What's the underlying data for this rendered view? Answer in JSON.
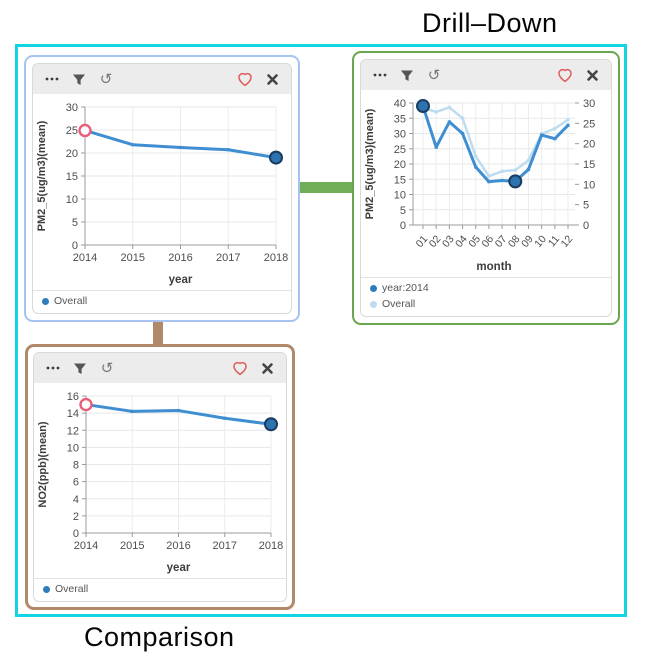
{
  "captions": {
    "drill_down": "Drill–Down",
    "comparison": "Comparison"
  },
  "colors": {
    "selection_frame_cyan": "#12d5e4",
    "focus_panel_border_blue": "#a6c3f2",
    "drilldown_link_green": "#6fae57",
    "comparison_link_brown": "#b0886a",
    "line_blue": "#3f8ed2",
    "line_light_blue": "#bedcf0",
    "marker_pink": "#e85d78",
    "marker_dark_fill": "#2d73af",
    "favorite_heart_red": "#e15b5b",
    "toolbar_background": "#ececec"
  },
  "toolbar": {
    "icons": [
      "more-options",
      "filter",
      "undo",
      "favorite",
      "close"
    ]
  },
  "chart_data": [
    {
      "type": "line",
      "x": [
        "2014",
        "2015",
        "2016",
        "2017",
        "2018"
      ],
      "xlabel": "year",
      "ylabel": "PM2_5(ug/m3)(mean)",
      "yleft": {
        "ticks": [
          0,
          5,
          10,
          15,
          20,
          25,
          30
        ]
      },
      "grid": true,
      "series": [
        {
          "name": "Overall",
          "axis": "left",
          "color": "#3f8ed2",
          "width": 3,
          "values": [
            24.9,
            21.8,
            21.2,
            20.7,
            19.0
          ]
        }
      ],
      "markers": [
        {
          "series": 0,
          "index": 0,
          "style": "open-pink"
        },
        {
          "series": 0,
          "index": 4,
          "style": "filled-dark"
        }
      ],
      "legend": [
        {
          "label": "Overall",
          "color": "#2e7cba"
        }
      ]
    },
    {
      "type": "line",
      "x": [
        "01",
        "02",
        "03",
        "04",
        "05",
        "06",
        "07",
        "08",
        "09",
        "10",
        "11",
        "12"
      ],
      "xlabel": "month",
      "ylabel": "PM2_5(ug/m3)(mean)",
      "yleft": {
        "ticks": [
          0,
          5,
          10,
          15,
          20,
          25,
          30,
          35,
          40
        ]
      },
      "yright": {
        "ticks": [
          0,
          5,
          10,
          15,
          20,
          25,
          30
        ]
      },
      "rotate_x": true,
      "grid": true,
      "series": [
        {
          "name": "year:2014",
          "axis": "left",
          "color": "#3f8ed2",
          "width": 3,
          "values": [
            39,
            25.5,
            33.8,
            30,
            19,
            14.2,
            14.6,
            14.3,
            18.2,
            29.5,
            28.3,
            32.7
          ]
        },
        {
          "name": "Overall",
          "axis": "right",
          "color": "#bedcf0",
          "width": 2.5,
          "values": [
            28.8,
            27.8,
            28.9,
            26.3,
            16.9,
            12.0,
            13.2,
            13.5,
            15.9,
            22.4,
            23.7,
            25.9
          ]
        }
      ],
      "markers": [
        {
          "series": 0,
          "index": 0,
          "style": "filled-dark"
        },
        {
          "series": 0,
          "index": 7,
          "style": "filled-dark"
        }
      ],
      "legend": [
        {
          "label": "year:2014",
          "color": "#2e7cba"
        },
        {
          "label": "Overall",
          "color": "#bedcf0"
        }
      ]
    },
    {
      "type": "line",
      "x": [
        "2014",
        "2015",
        "2016",
        "2017",
        "2018"
      ],
      "xlabel": "year",
      "ylabel": "NO2(ppb)(mean)",
      "yleft": {
        "ticks": [
          0,
          2,
          4,
          6,
          8,
          10,
          12,
          14,
          16
        ]
      },
      "grid": true,
      "series": [
        {
          "name": "Overall",
          "axis": "left",
          "color": "#3f8ed2",
          "width": 3,
          "values": [
            15.0,
            14.2,
            14.3,
            13.4,
            12.7
          ]
        }
      ],
      "markers": [
        {
          "series": 0,
          "index": 0,
          "style": "open-pink"
        },
        {
          "series": 0,
          "index": 4,
          "style": "filled-dark"
        }
      ],
      "legend": [
        {
          "label": "Overall",
          "color": "#2e7cba"
        }
      ]
    }
  ]
}
